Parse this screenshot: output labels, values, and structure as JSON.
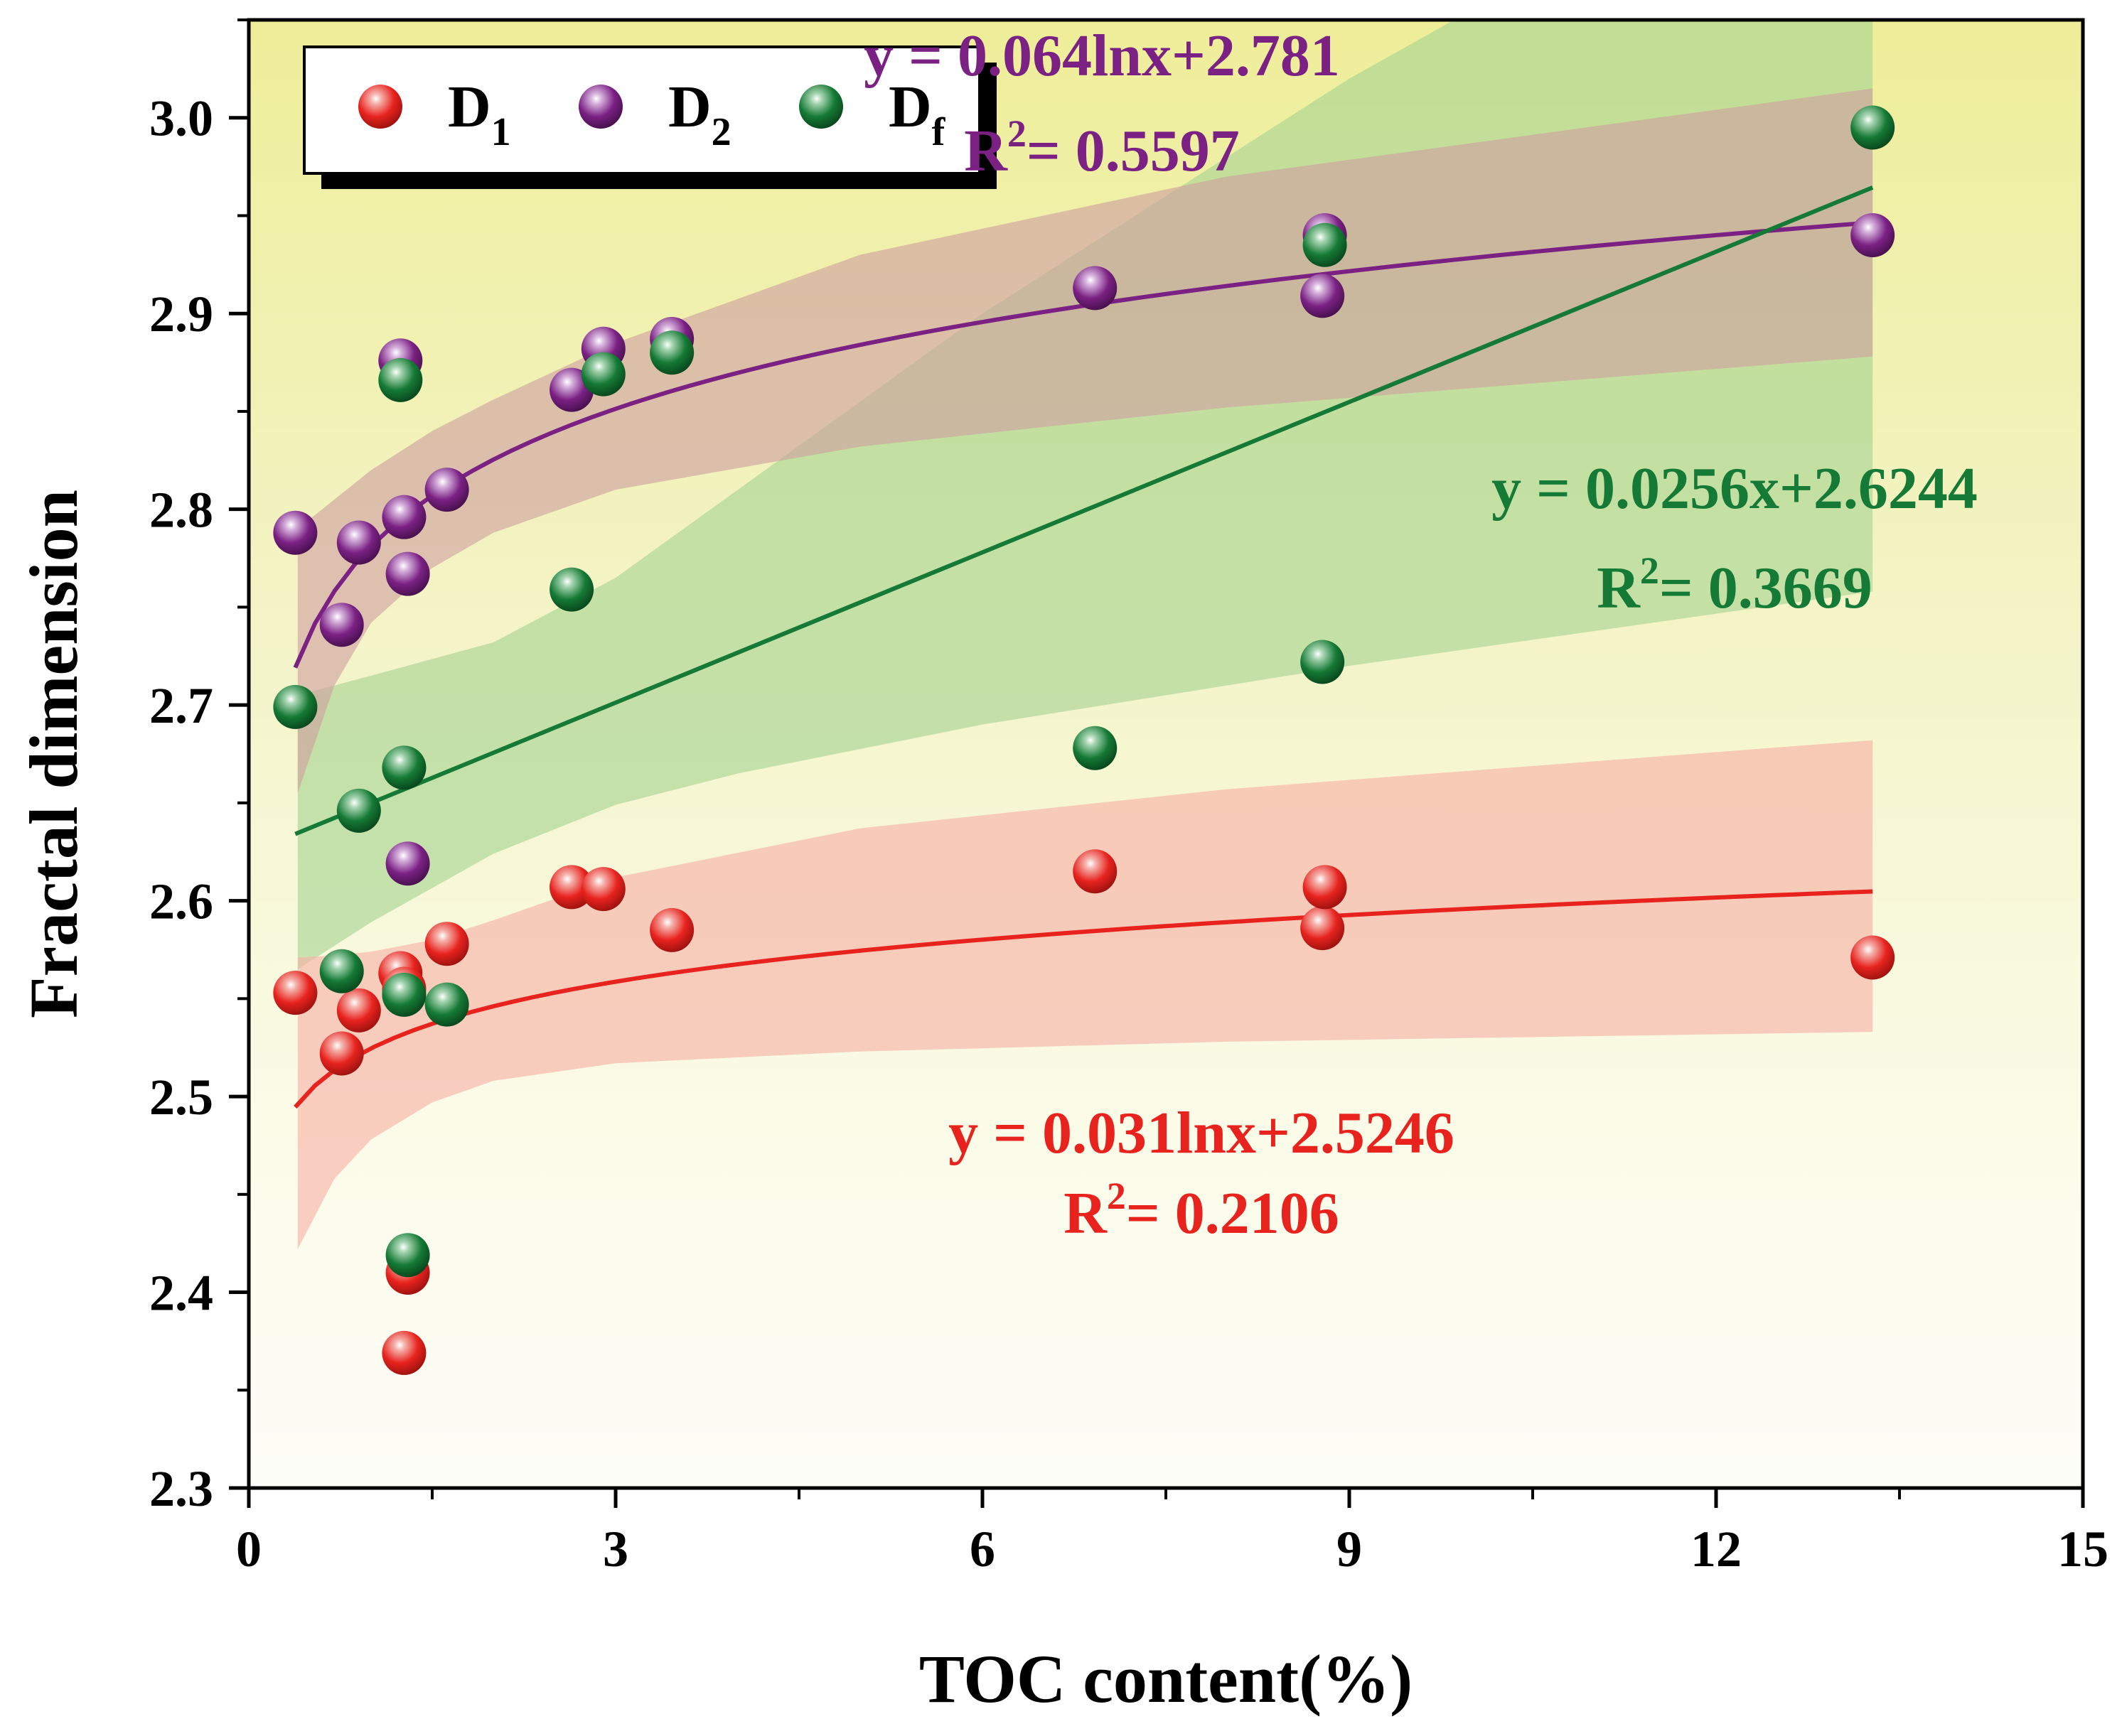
{
  "chart_data": {
    "type": "scatter",
    "title": "",
    "xlabel": "TOC content(%)",
    "ylabel": "Fractal dimension",
    "xlim": [
      0,
      15
    ],
    "ylim": [
      2.3,
      3.05
    ],
    "x_ticks": [
      0,
      3,
      6,
      9,
      12,
      15
    ],
    "x_tick_labels": [
      "0",
      "3",
      "6",
      "9",
      "12",
      "15"
    ],
    "y_ticks": [
      2.3,
      2.4,
      2.5,
      2.6,
      2.7,
      2.8,
      2.9,
      3.0
    ],
    "y_tick_labels": [
      "2.3",
      "2.4",
      "2.5",
      "2.6",
      "2.7",
      "2.8",
      "2.9",
      "3.0"
    ],
    "grid": false,
    "legend_position": "top-left",
    "series": [
      {
        "name": "D1",
        "name_base": "D",
        "name_sub": "1",
        "color": "#e8231e",
        "x": [
          0.38,
          0.76,
          0.9,
          1.24,
          1.27,
          1.27,
          1.3,
          1.62,
          2.64,
          2.9,
          3.46,
          6.92,
          8.78,
          8.8,
          13.28
        ],
        "y": [
          2.553,
          2.522,
          2.544,
          2.563,
          2.369,
          2.555,
          2.41,
          2.578,
          2.607,
          2.606,
          2.585,
          2.615,
          2.586,
          2.607,
          2.571
        ],
        "fit": {
          "model": "log",
          "a": 0.031,
          "b": 2.5246,
          "x_range": [
            0.38,
            13.28
          ],
          "ci_band_color": "#f7b0a4",
          "ci_lower": [
            [
              0.4,
              2.422
            ],
            [
              0.7,
              2.458
            ],
            [
              1.0,
              2.478
            ],
            [
              1.5,
              2.497
            ],
            [
              2.0,
              2.508
            ],
            [
              3.0,
              2.517
            ],
            [
              5.0,
              2.523
            ],
            [
              8.0,
              2.528
            ],
            [
              13.28,
              2.533
            ]
          ],
          "ci_upper": [
            [
              0.4,
              2.571
            ],
            [
              0.7,
              2.572
            ],
            [
              1.0,
              2.574
            ],
            [
              1.5,
              2.58
            ],
            [
              2.0,
              2.59
            ],
            [
              3.0,
              2.612
            ],
            [
              5.0,
              2.637
            ],
            [
              8.0,
              2.657
            ],
            [
              13.28,
              2.682
            ]
          ]
        },
        "equation": "y = 0.031lnx+2.5246",
        "r2_label": "R",
        "r2_sup": "2",
        "r2_value": "= 0.2106"
      },
      {
        "name": "D2",
        "name_base": "D",
        "name_sub": "2",
        "color": "#7b2184",
        "x": [
          0.38,
          0.76,
          0.9,
          1.24,
          1.27,
          1.3,
          1.3,
          1.62,
          2.64,
          2.9,
          3.46,
          6.92,
          8.78,
          8.8,
          13.28
        ],
        "y": [
          2.788,
          2.741,
          2.783,
          2.876,
          2.796,
          2.767,
          2.619,
          2.81,
          2.861,
          2.882,
          2.887,
          2.913,
          2.909,
          2.94,
          2.94
        ],
        "fit": {
          "model": "log",
          "a": 0.064,
          "b": 2.781,
          "x_range": [
            0.38,
            13.28
          ],
          "ci_band_color": "#cf9f9f",
          "ci_lower": [
            [
              0.4,
              2.655
            ],
            [
              0.7,
              2.71
            ],
            [
              1.0,
              2.742
            ],
            [
              1.5,
              2.77
            ],
            [
              2.0,
              2.788
            ],
            [
              3.0,
              2.81
            ],
            [
              5.0,
              2.832
            ],
            [
              8.0,
              2.852
            ],
            [
              13.28,
              2.878
            ]
          ],
          "ci_upper": [
            [
              0.4,
              2.79
            ],
            [
              0.7,
              2.805
            ],
            [
              1.0,
              2.82
            ],
            [
              1.5,
              2.84
            ],
            [
              2.0,
              2.856
            ],
            [
              3.0,
              2.885
            ],
            [
              5.0,
              2.93
            ],
            [
              8.0,
              2.97
            ],
            [
              13.28,
              3.015
            ]
          ]
        },
        "equation": "y = 0.064lnx+2.781",
        "r2_label": "R",
        "r2_sup": "2",
        "r2_value": "= 0.5597"
      },
      {
        "name": "Df",
        "name_base": "D",
        "name_sub": "f",
        "color": "#157a35",
        "x": [
          0.38,
          0.76,
          0.9,
          1.24,
          1.27,
          1.27,
          1.3,
          1.62,
          2.64,
          2.9,
          3.46,
          6.92,
          8.78,
          8.8,
          13.28
        ],
        "y": [
          2.699,
          2.564,
          2.646,
          2.866,
          2.668,
          2.552,
          2.419,
          2.547,
          2.759,
          2.869,
          2.88,
          2.678,
          2.722,
          2.935,
          2.995
        ],
        "fit": {
          "model": "linear",
          "a": 0.0256,
          "b": 2.6244,
          "x_range": [
            0.38,
            13.28
          ],
          "ci_band_color": "#a7d491",
          "ci_lower": [
            [
              0.4,
              2.565
            ],
            [
              1.0,
              2.589
            ],
            [
              2.0,
              2.624
            ],
            [
              3.0,
              2.649
            ],
            [
              4.0,
              2.665
            ],
            [
              6.0,
              2.69
            ],
            [
              9.0,
              2.72
            ],
            [
              13.28,
              2.758
            ]
          ],
          "ci_upper": [
            [
              0.4,
              2.705
            ],
            [
              1.0,
              2.715
            ],
            [
              2.0,
              2.732
            ],
            [
              3.0,
              2.765
            ],
            [
              4.0,
              2.81
            ],
            [
              6.0,
              2.9
            ],
            [
              9.0,
              3.02
            ],
            [
              11.0,
              3.09
            ],
            [
              13.28,
              3.09
            ]
          ]
        },
        "equation": "y = 0.0256x+2.6244",
        "r2_label": "R",
        "r2_sup": "2",
        "r2_value": "= 0.3669"
      }
    ]
  }
}
